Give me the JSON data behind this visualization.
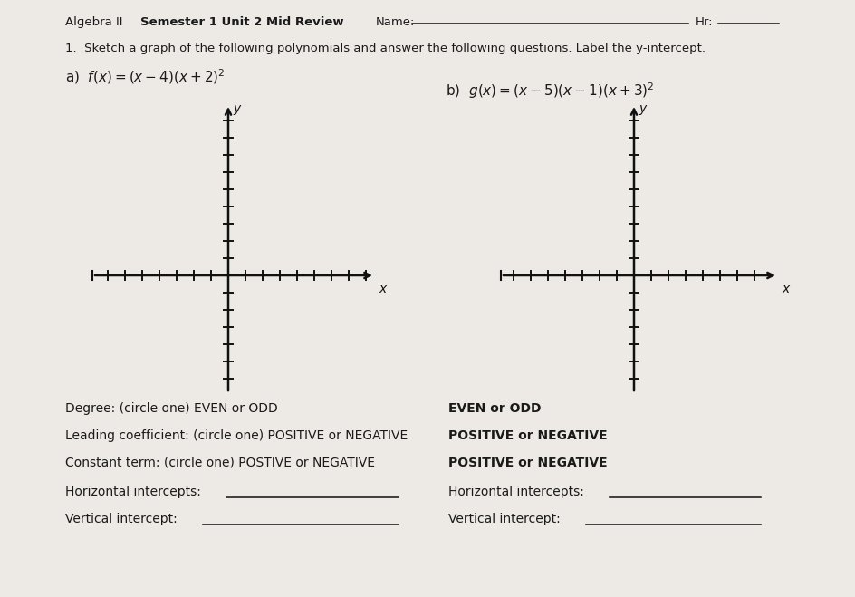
{
  "bg_color": "#d0cec8",
  "paper_color": "#edeae6",
  "algebra_ii": "Algebra II",
  "semester_label": "Semester 1 Unit 2 Mid Review",
  "name_label": "Name:",
  "hr_label": "Hr:",
  "question_1": "1.  Sketch a graph of the following polynomials and answer the following questions. Label the y-intercept.",
  "func_a_label": "a)",
  "func_a_math": "$f(x) = (x-4)(x+2)^2$",
  "func_b_label": "b)",
  "func_b_math": "$g(x) = (x-5)(x-1)(x+3)^2$",
  "degree_left": "Degree: (circle one) EVEN or ODD",
  "degree_right": "EVEN or ODD",
  "leading_left": "Leading coefficient: (circle one) POSITIVE or NEGATIVE",
  "leading_right": "POSITIVE or NEGATIVE",
  "constant_left": "Constant term: (circle one) POSTIVE or NEGATIVE",
  "constant_right": "POSITIVE or NEGATIVE",
  "horiz_left": "Horizontal intercepts:",
  "horiz_right": "Horizontal intercepts:",
  "vert_left": "Vertical intercept:",
  "vert_right": "Vertical intercept:",
  "text_color": "#1a1a1a",
  "axis_color": "#111111"
}
